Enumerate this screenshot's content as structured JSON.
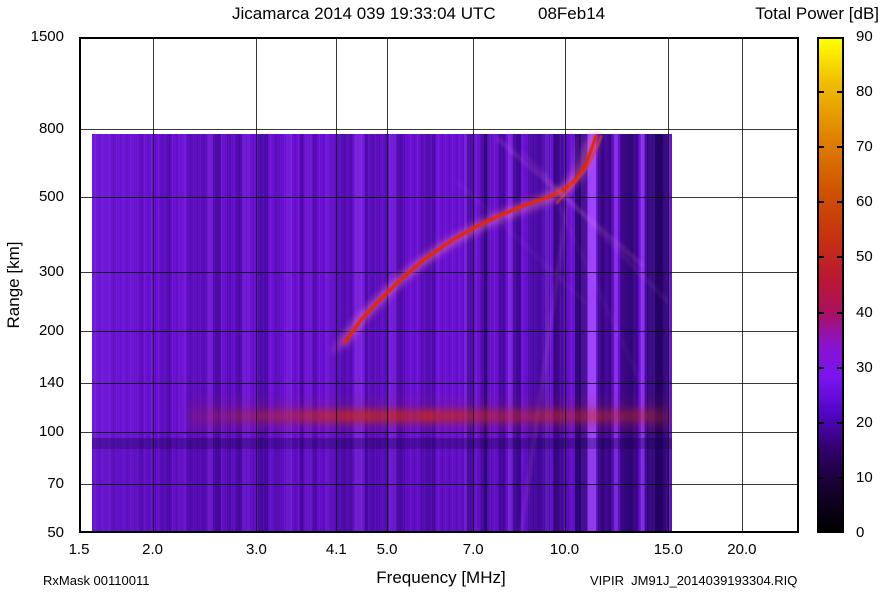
{
  "header": {
    "title": "Jicamarca 2014 039 19:33:04 UTC",
    "date": "08Feb14"
  },
  "colorbar": {
    "title": "Total Power [dB]",
    "min_db": 0,
    "max_db": 90,
    "ticks": [
      0,
      10,
      20,
      30,
      40,
      50,
      60,
      70,
      80,
      90
    ],
    "palette": [
      {
        "db": 0,
        "color": "#000000"
      },
      {
        "db": 8,
        "color": "#170030"
      },
      {
        "db": 15,
        "color": "#32006e"
      },
      {
        "db": 22,
        "color": "#5306c9"
      },
      {
        "db": 28,
        "color": "#7a14f0"
      },
      {
        "db": 34,
        "color": "#8912cf"
      },
      {
        "db": 40,
        "color": "#aa1160"
      },
      {
        "db": 46,
        "color": "#bb1733"
      },
      {
        "db": 53,
        "color": "#c52f12"
      },
      {
        "db": 62,
        "color": "#cf5200"
      },
      {
        "db": 72,
        "color": "#e08200"
      },
      {
        "db": 82,
        "color": "#f0be00"
      },
      {
        "db": 90,
        "color": "#ffff00"
      }
    ]
  },
  "axes": {
    "x": {
      "title": "Frequency [MHz]",
      "scale": "log",
      "ticks": [
        {
          "v": 1.5,
          "label": "1.5"
        },
        {
          "v": 2.0,
          "label": "2.0"
        },
        {
          "v": 3.0,
          "label": "3.0"
        },
        {
          "v": 4.1,
          "label": "4.1"
        },
        {
          "v": 5.0,
          "label": "5.0"
        },
        {
          "v": 7.0,
          "label": "7.0"
        },
        {
          "v": 10.0,
          "label": "10.0"
        },
        {
          "v": 15.0,
          "label": "15.0"
        },
        {
          "v": 20.0,
          "label": "20.0"
        }
      ]
    },
    "y": {
      "title": "Range [km]",
      "scale": "log",
      "ticks": [
        {
          "v": 50,
          "label": "50"
        },
        {
          "v": 70,
          "label": "70"
        },
        {
          "v": 100,
          "label": "100"
        },
        {
          "v": 140,
          "label": "140"
        },
        {
          "v": 200,
          "label": "200"
        },
        {
          "v": 300,
          "label": "300"
        },
        {
          "v": 500,
          "label": "500"
        },
        {
          "v": 800,
          "label": "800"
        },
        {
          "v": 1500,
          "label": "1500"
        }
      ]
    }
  },
  "footer": {
    "rx_mask": "RxMask 00110011",
    "instrument_file": "VIPIR  JM91J_2014039193304.RIQ"
  },
  "chart_data": {
    "type": "heatmap",
    "title": "Jicamarca 2014 039 19:33:04 UTC 08Feb14",
    "xlabel": "Frequency [MHz]",
    "ylabel": "Range [km]",
    "colorbar_label": "Total Power [dB]",
    "x_scale": "log",
    "y_scale": "log",
    "xlim": [
      1.5,
      25
    ],
    "ylim": [
      50,
      1500
    ],
    "x_ticks": [
      1.5,
      2.0,
      3.0,
      4.1,
      5.0,
      7.0,
      10.0,
      15.0,
      20.0
    ],
    "y_ticks": [
      50,
      70,
      100,
      140,
      200,
      300,
      500,
      800,
      1500
    ],
    "colorbar_range_db": [
      0,
      90
    ],
    "grid": true,
    "legend": "colorbar right",
    "sweep": {
      "freq_mhz": [
        1.58,
        15.2
      ],
      "range_km": [
        50,
        770
      ],
      "background_db": 22
    },
    "f_trace": {
      "name": "F-layer echo trace",
      "peak_db": 48,
      "points_freq_range": [
        [
          4.24,
          185
        ],
        [
          4.53,
          217
        ],
        [
          4.86,
          247
        ],
        [
          5.26,
          283
        ],
        [
          5.79,
          327
        ],
        [
          6.39,
          368
        ],
        [
          7.05,
          407
        ],
        [
          7.78,
          442
        ],
        [
          8.58,
          474
        ],
        [
          9.39,
          500
        ],
        [
          10.0,
          529
        ],
        [
          10.5,
          570
        ],
        [
          10.87,
          628
        ],
        [
          11.13,
          700
        ],
        [
          11.3,
          760
        ]
      ]
    },
    "f_trace_second": {
      "name": "second echo branch",
      "points_freq_range": [
        [
          9.7,
          480
        ],
        [
          10.3,
          540
        ],
        [
          10.9,
          610
        ],
        [
          11.3,
          690
        ],
        [
          11.55,
          760
        ]
      ]
    },
    "e_region": {
      "name": "E-region echo band",
      "freq_mhz": [
        2.3,
        15.2
      ],
      "range_km": [
        96,
        132
      ],
      "peak_db": 52
    }
  }
}
